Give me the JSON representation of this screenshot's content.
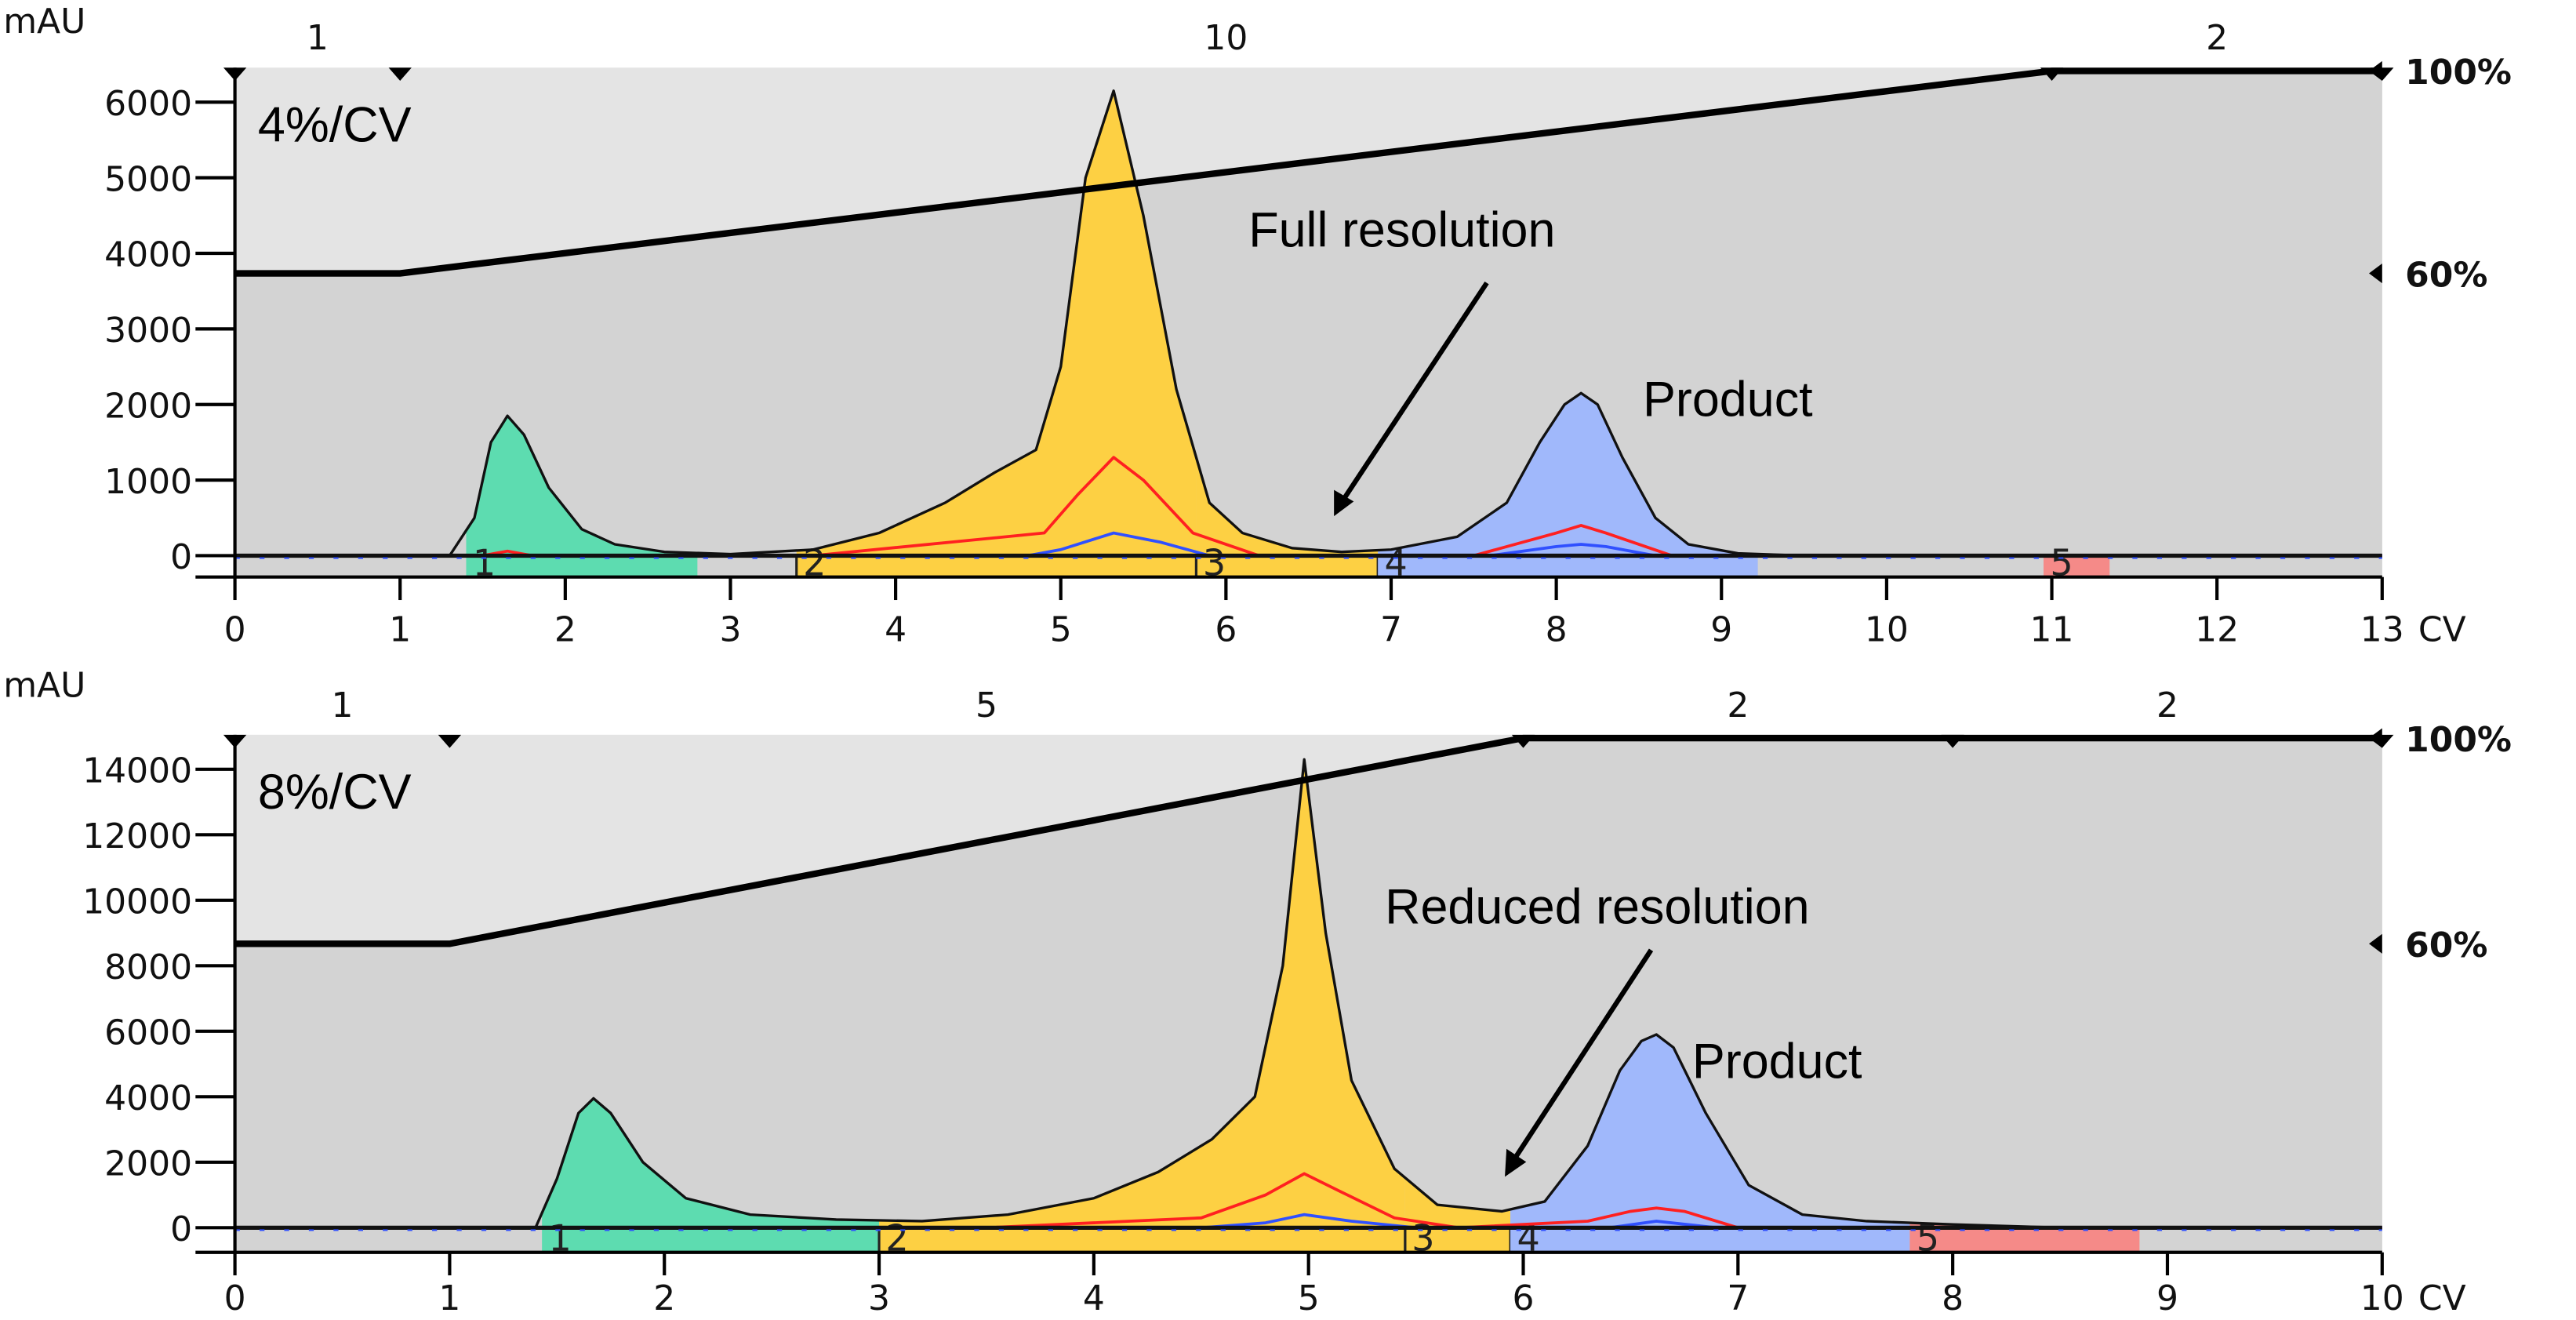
{
  "chart_data": [
    {
      "type": "area",
      "title": "",
      "ylabel": "mAU",
      "xunit": "CV",
      "xlim": [
        0,
        13
      ],
      "ylim": [
        0,
        6000
      ],
      "xticks": [
        "0",
        "1",
        "2",
        "3",
        "4",
        "5",
        "6",
        "7",
        "8",
        "9",
        "10",
        "11",
        "12",
        "13"
      ],
      "yticks": [
        "0",
        "1000",
        "2000",
        "3000",
        "4000",
        "5000",
        "6000"
      ],
      "right_ticks": [
        {
          "label": "100%",
          "value": 100
        },
        {
          "label": "60%",
          "value": 60
        }
      ],
      "gradient": {
        "x": [
          0,
          1,
          11,
          13
        ],
        "percent": [
          60,
          60,
          100,
          100
        ]
      },
      "block_labels": [
        {
          "label": "1",
          "x": 0.5
        },
        {
          "label": "10",
          "x": 6
        },
        {
          "label": "2",
          "x": 12
        }
      ],
      "block_markers": [
        0,
        1,
        11,
        13
      ],
      "fractions": [
        {
          "label": "1",
          "start": 1.4,
          "end": 2.8,
          "color": "#5ddcb0"
        },
        {
          "label": "2",
          "start": 3.4,
          "end": 5.82,
          "color": "#fdd043"
        },
        {
          "label": "3",
          "start": 5.82,
          "end": 6.92,
          "color": "#fdd043"
        },
        {
          "label": "4",
          "start": 6.92,
          "end": 9.22,
          "color": "#a0b8fb"
        },
        {
          "label": "5",
          "start": 10.95,
          "end": 11.35,
          "color": "#f58a88"
        }
      ],
      "series": [
        {
          "color": "#111111",
          "x": [
            0,
            1.3,
            1.45,
            1.55,
            1.65,
            1.75,
            1.9,
            2.1,
            2.3,
            2.6,
            3.0,
            3.5,
            3.9,
            4.3,
            4.6,
            4.85,
            5.0,
            5.15,
            5.32,
            5.5,
            5.7,
            5.9,
            6.1,
            6.4,
            6.7,
            7.0,
            7.4,
            7.7,
            7.9,
            8.05,
            8.15,
            8.25,
            8.4,
            8.6,
            8.8,
            9.1,
            9.5,
            13
          ],
          "y": [
            0,
            0,
            500,
            1500,
            1850,
            1600,
            900,
            350,
            150,
            50,
            20,
            80,
            300,
            700,
            1100,
            1400,
            2500,
            5000,
            6150,
            4500,
            2200,
            700,
            300,
            100,
            50,
            80,
            250,
            700,
            1500,
            2000,
            2150,
            2000,
            1300,
            500,
            150,
            30,
            0,
            0
          ]
        },
        {
          "color": "#ff2020",
          "x": [
            0,
            1.5,
            1.65,
            1.8,
            3.5,
            4.9,
            5.1,
            5.32,
            5.5,
            5.8,
            6.2,
            7.5,
            8.0,
            8.15,
            8.3,
            8.7,
            13
          ],
          "y": [
            0,
            0,
            60,
            0,
            0,
            300,
            800,
            1300,
            1000,
            300,
            0,
            0,
            300,
            400,
            300,
            0,
            0
          ]
        },
        {
          "color": "#3050ff",
          "x": [
            0,
            4.8,
            5.0,
            5.32,
            5.6,
            5.9,
            7.6,
            8.0,
            8.15,
            8.3,
            8.6,
            13
          ],
          "y": [
            0,
            0,
            80,
            300,
            180,
            0,
            0,
            120,
            150,
            120,
            0,
            0
          ]
        }
      ],
      "annotations": {
        "rate": "4%/CV",
        "resolution": "Full resolution",
        "product": "Product"
      }
    },
    {
      "type": "area",
      "title": "",
      "ylabel": "mAU",
      "xunit": "CV",
      "xlim": [
        0,
        10
      ],
      "ylim": [
        0,
        14000
      ],
      "xticks": [
        "0",
        "1",
        "2",
        "3",
        "4",
        "5",
        "6",
        "7",
        "8",
        "9",
        "10"
      ],
      "yticks": [
        "0",
        "2000",
        "4000",
        "6000",
        "8000",
        "10000",
        "12000",
        "14000"
      ],
      "right_ticks": [
        {
          "label": "100%",
          "value": 100
        },
        {
          "label": "60%",
          "value": 60
        }
      ],
      "gradient": {
        "x": [
          0,
          1,
          6,
          10
        ],
        "percent": [
          60,
          60,
          100,
          100
        ]
      },
      "block_labels": [
        {
          "label": "1",
          "x": 0.5
        },
        {
          "label": "5",
          "x": 3.5
        },
        {
          "label": "2",
          "x": 7
        },
        {
          "label": "2",
          "x": 9
        }
      ],
      "block_markers": [
        0,
        1,
        6,
        8,
        10
      ],
      "fractions": [
        {
          "label": "1",
          "start": 1.43,
          "end": 3.0,
          "color": "#5ddcb0"
        },
        {
          "label": "2",
          "start": 3.0,
          "end": 5.45,
          "color": "#fdd043"
        },
        {
          "label": "3",
          "start": 5.45,
          "end": 5.94,
          "color": "#fdd043"
        },
        {
          "label": "4",
          "start": 5.94,
          "end": 7.8,
          "color": "#a0b8fb"
        },
        {
          "label": "5",
          "start": 7.8,
          "end": 8.87,
          "color": "#f58a88"
        }
      ],
      "series": [
        {
          "color": "#111111",
          "x": [
            0,
            1.4,
            1.5,
            1.6,
            1.67,
            1.75,
            1.9,
            2.1,
            2.4,
            2.8,
            3.2,
            3.6,
            4.0,
            4.3,
            4.55,
            4.75,
            4.88,
            4.98,
            5.08,
            5.2,
            5.4,
            5.6,
            5.9,
            6.1,
            6.3,
            6.45,
            6.55,
            6.62,
            6.7,
            6.85,
            7.05,
            7.3,
            7.6,
            8.0,
            8.5,
            10
          ],
          "y": [
            0,
            0,
            1500,
            3500,
            3950,
            3500,
            2000,
            900,
            400,
            250,
            200,
            400,
            900,
            1700,
            2700,
            4000,
            8000,
            14300,
            9000,
            4500,
            1800,
            700,
            500,
            800,
            2500,
            4800,
            5700,
            5900,
            5500,
            3500,
            1300,
            400,
            200,
            100,
            0,
            0
          ]
        },
        {
          "color": "#ff2020",
          "x": [
            0,
            3.5,
            4.5,
            4.8,
            4.98,
            5.15,
            5.4,
            5.7,
            6.3,
            6.5,
            6.62,
            6.75,
            7.0,
            10
          ],
          "y": [
            0,
            0,
            300,
            1000,
            1650,
            1100,
            300,
            0,
            200,
            500,
            600,
            500,
            0,
            0
          ]
        },
        {
          "color": "#3050ff",
          "x": [
            0,
            4.5,
            4.8,
            4.98,
            5.2,
            5.5,
            6.4,
            6.62,
            6.9,
            10
          ],
          "y": [
            0,
            0,
            150,
            400,
            200,
            0,
            0,
            200,
            0,
            0
          ]
        }
      ],
      "annotations": {
        "rate": "8%/CV",
        "resolution": "Reduced resolution",
        "product": "Product"
      }
    }
  ]
}
